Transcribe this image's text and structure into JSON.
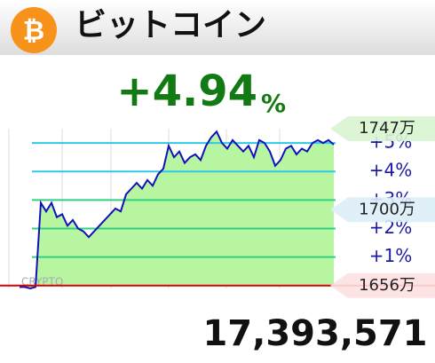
{
  "chart_data": {
    "type": "line",
    "title": "ビットコイン",
    "icon": "₿",
    "change": "+4.94",
    "change_unit": "%",
    "price": "17,393,571",
    "watermark": "CRYPTO",
    "values": [
      -0.05,
      -0.05,
      -0.1,
      -0.05,
      2.9,
      2.6,
      2.9,
      2.4,
      2.5,
      2.1,
      2.3,
      2.0,
      1.9,
      1.7,
      1.9,
      2.1,
      2.3,
      2.5,
      2.7,
      2.6,
      3.2,
      3.4,
      3.6,
      3.4,
      3.7,
      3.5,
      3.9,
      4.1,
      4.9,
      4.5,
      4.7,
      4.3,
      4.5,
      4.6,
      4.4,
      4.9,
      5.2,
      5.4,
      5.0,
      4.8,
      5.1,
      4.9,
      4.7,
      4.9,
      4.5,
      5.1,
      5.0,
      4.7,
      4.2,
      4.4,
      4.8,
      4.9,
      4.6,
      4.8,
      4.7,
      5.0,
      5.1,
      5.0,
      5.1,
      4.94
    ],
    "color": "#1111bb",
    "fill": "#b8f5a0",
    "ylim": [
      -0.1,
      5.5
    ],
    "yticks": [
      {
        "value": 1,
        "label": "+1%"
      },
      {
        "value": 2,
        "label": "+2%"
      },
      {
        "value": 3,
        "label": "+3%"
      },
      {
        "value": 4,
        "label": "+4%"
      },
      {
        "value": 5,
        "label": "+5%"
      }
    ],
    "grid": true,
    "price_markers": [
      {
        "value": 5.5,
        "label": "1747万"
      },
      {
        "value": 2.66,
        "label": "1700万"
      },
      {
        "value": 0,
        "label": "1656万"
      }
    ]
  }
}
